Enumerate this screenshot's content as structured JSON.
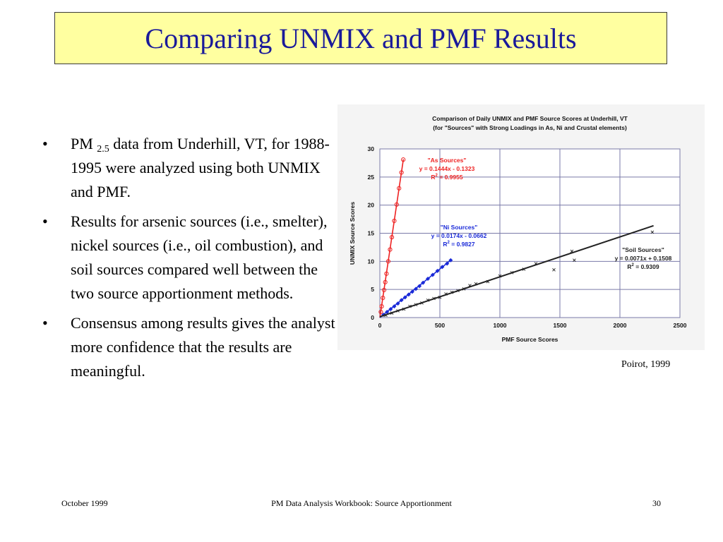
{
  "slide": {
    "title": "Comparing UNMIX and PMF Results",
    "bullets": [
      {
        "pre": "PM ",
        "sub": "2.5",
        "post": " data from Underhill, VT, for 1988-1995 were analyzed using both UNMIX and PMF."
      },
      {
        "text": "Results for arsenic sources (i.e., smelter), nickel sources (i.e., oil combustion), and soil sources compared well between the two source apportionment methods."
      },
      {
        "text": "Consensus among results gives the analyst more confidence that the results are meaningful."
      }
    ],
    "bullet_char": "•",
    "credit": "Poirot, 1999"
  },
  "footer": {
    "date": "October 1999",
    "workbook": "PM Data Analysis Workbook: Source Apportionment",
    "page": "30"
  },
  "chart_data": {
    "type": "scatter",
    "title": "Comparison of Daily UNMIX and PMF Source Scores at Underhill, VT",
    "subtitle": "(for \"Sources\" with Strong Loadings in As, Ni and Crustal elements)",
    "xlabel": "PMF Source Scores",
    "ylabel": "UNMIX Source Scores",
    "xlim": [
      0,
      2500
    ],
    "ylim": [
      0,
      30
    ],
    "xticks": [
      0,
      500,
      1000,
      1500,
      2000,
      2500
    ],
    "yticks": [
      0,
      5,
      10,
      15,
      20,
      25,
      30
    ],
    "grid": true,
    "series": [
      {
        "name": "\"As Sources\"",
        "color": "#ee2222",
        "marker": "circle",
        "equation": "y = 0.1444x - 0.1323",
        "r2_label": "R",
        "r2_value": " = 0.9955",
        "fit": {
          "slope": 0.1444,
          "intercept": -0.1323,
          "x_range": [
            0,
            196
          ]
        },
        "points": [
          [
            8,
            1.0
          ],
          [
            15,
            2.0
          ],
          [
            25,
            3.5
          ],
          [
            35,
            4.9
          ],
          [
            45,
            6.3
          ],
          [
            55,
            7.8
          ],
          [
            70,
            10.0
          ],
          [
            85,
            12.1
          ],
          [
            100,
            14.3
          ],
          [
            120,
            17.2
          ],
          [
            140,
            20.1
          ],
          [
            160,
            23.0
          ],
          [
            180,
            25.8
          ],
          [
            195,
            28.1
          ]
        ]
      },
      {
        "name": "\"Ni Sources\"",
        "color": "#1a2ad8",
        "marker": "diamond",
        "equation": "y = 0.0174x - 0.0662",
        "r2_label": "R",
        "r2_value": " = 0.9827",
        "fit": {
          "slope": 0.0174,
          "intercept": -0.0662,
          "x_range": [
            0,
            590
          ]
        },
        "points": [
          [
            30,
            0.5
          ],
          [
            60,
            1.0
          ],
          [
            90,
            1.5
          ],
          [
            120,
            2.0
          ],
          [
            150,
            2.5
          ],
          [
            180,
            3.1
          ],
          [
            210,
            3.6
          ],
          [
            240,
            4.1
          ],
          [
            270,
            4.6
          ],
          [
            300,
            5.1
          ],
          [
            330,
            5.6
          ],
          [
            360,
            6.2
          ],
          [
            400,
            6.9
          ],
          [
            440,
            7.6
          ],
          [
            480,
            8.3
          ],
          [
            520,
            9.0
          ],
          [
            560,
            9.6
          ],
          [
            590,
            10.2
          ]
        ]
      },
      {
        "name": "\"Soil Sources\"",
        "color": "#222222",
        "marker": "x",
        "equation": "y = 0.0071x + 0.1508",
        "r2_label": "R",
        "r2_value": " = 0.9309",
        "fit": {
          "slope": 0.0071,
          "intercept": 0.1508,
          "x_range": [
            0,
            2280
          ]
        },
        "points": [
          [
            50,
            0.4
          ],
          [
            100,
            0.8
          ],
          [
            150,
            1.2
          ],
          [
            200,
            1.5
          ],
          [
            250,
            2.0
          ],
          [
            300,
            2.3
          ],
          [
            350,
            2.6
          ],
          [
            400,
            3.1
          ],
          [
            450,
            3.4
          ],
          [
            500,
            3.6
          ],
          [
            550,
            4.2
          ],
          [
            600,
            4.5
          ],
          [
            650,
            4.8
          ],
          [
            700,
            5.1
          ],
          [
            750,
            5.7
          ],
          [
            800,
            6.0
          ],
          [
            900,
            6.4
          ],
          [
            1000,
            7.4
          ],
          [
            1100,
            8.0
          ],
          [
            1200,
            8.6
          ],
          [
            1300,
            9.6
          ],
          [
            1450,
            8.5
          ],
          [
            1600,
            11.8
          ],
          [
            1620,
            10.2
          ],
          [
            2270,
            15.2
          ]
        ]
      }
    ]
  }
}
